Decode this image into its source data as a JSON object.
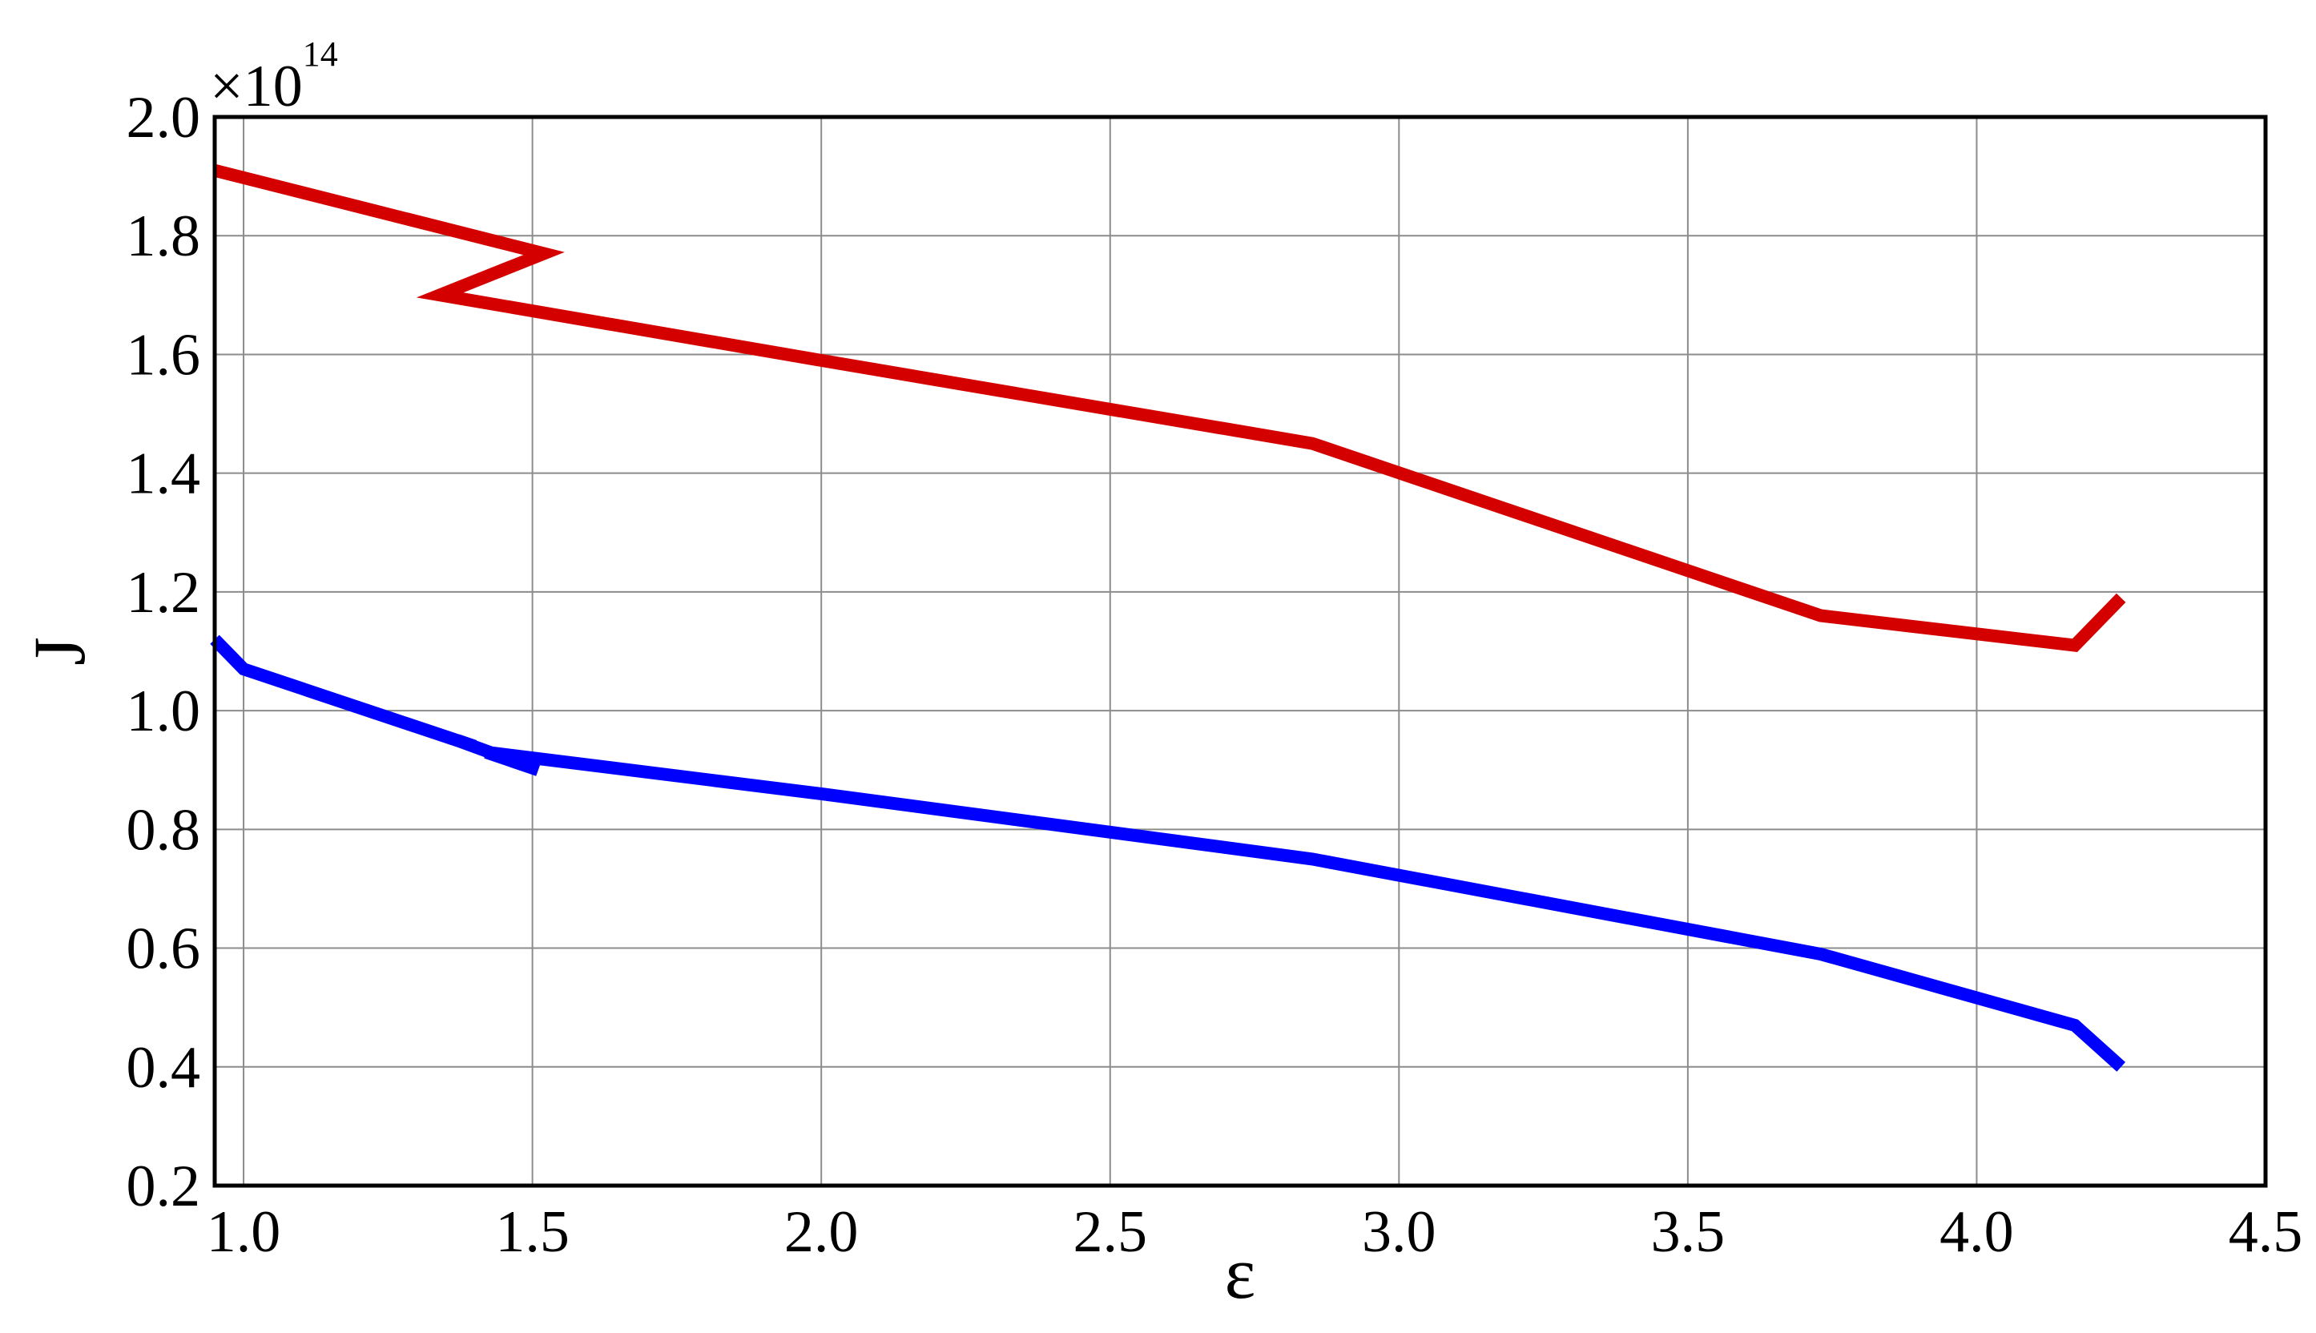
{
  "chart_data": {
    "type": "line",
    "xlabel": "ε",
    "ylabel": "J",
    "multiplier_label": "×10",
    "multiplier_exponent": "14",
    "xlim": [
      0.95,
      4.5
    ],
    "ylim": [
      0.2,
      2.0
    ],
    "x_ticks": [
      1.0,
      1.5,
      2.0,
      2.5,
      3.0,
      3.5,
      4.0,
      4.5
    ],
    "x_tick_labels": [
      "1.0",
      "1.5",
      "2.0",
      "2.5",
      "3.0",
      "3.5",
      "4.0",
      "4.5"
    ],
    "y_ticks": [
      0.2,
      0.4,
      0.6,
      0.8,
      1.0,
      1.2,
      1.4,
      1.6,
      1.8,
      2.0
    ],
    "y_tick_labels": [
      "0.2",
      "0.4",
      "0.6",
      "0.8",
      "1.0",
      "1.2",
      "1.4",
      "1.6",
      "1.8",
      "2.0"
    ],
    "grid": true,
    "series": [
      {
        "color": "#d40000",
        "x": [
          0.95,
          1.52,
          1.34,
          2.0,
          2.85,
          3.73,
          4.17,
          4.25
        ],
        "y": [
          1.91,
          1.77,
          1.7,
          1.59,
          1.45,
          1.16,
          1.11,
          1.19
        ]
      },
      {
        "color": "#0000ff",
        "x": [
          0.95,
          1.0,
          1.4,
          1.37,
          1.51,
          1.42,
          2.0,
          2.85,
          3.73,
          4.17,
          4.25
        ],
        "y": [
          1.12,
          1.07,
          0.94,
          0.95,
          0.9,
          0.93,
          0.86,
          0.75,
          0.59,
          0.47,
          0.4
        ]
      }
    ]
  }
}
